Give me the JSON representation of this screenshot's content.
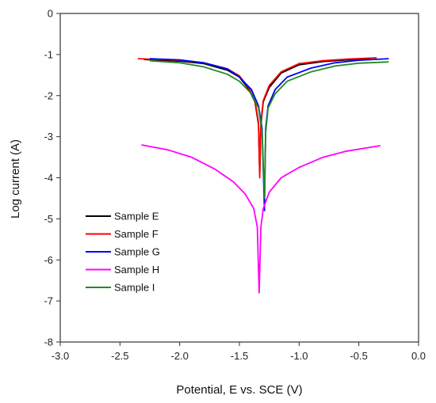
{
  "chart_data": {
    "type": "line",
    "title": "",
    "xlabel": "Potential, E vs. SCE (V)",
    "ylabel": "Log current (A)",
    "xlim": [
      -3.0,
      0.0
    ],
    "ylim": [
      -8,
      0
    ],
    "x_ticks": [
      -3.0,
      -2.5,
      -2.0,
      -1.5,
      -1.0,
      -0.5,
      0.0
    ],
    "x_tick_labels": [
      "-3.0",
      "-2.5",
      "-2.0",
      "-1.5",
      "-1.0",
      "-0.5",
      "0.0"
    ],
    "y_ticks": [
      0,
      -1,
      -2,
      -3,
      -4,
      -5,
      -6,
      -7,
      -8
    ],
    "y_tick_labels": [
      "0",
      "-1",
      "-2",
      "-3",
      "-4",
      "-5",
      "-6",
      "-7",
      "-8"
    ],
    "grid": false,
    "legend_position": "lower-left",
    "series": [
      {
        "name": "Sample E",
        "color": "#000000",
        "x": [
          -2.3,
          -2.0,
          -1.8,
          -1.6,
          -1.5,
          -1.42,
          -1.37,
          -1.34,
          -1.33,
          -1.32,
          -1.3,
          -1.25,
          -1.15,
          -1.0,
          -0.8,
          -0.6,
          -0.4
        ],
        "y": [
          -1.12,
          -1.16,
          -1.22,
          -1.38,
          -1.55,
          -1.85,
          -2.15,
          -2.7,
          -3.9,
          -2.7,
          -2.15,
          -1.8,
          -1.45,
          -1.25,
          -1.17,
          -1.13,
          -1.1
        ]
      },
      {
        "name": "Sample F",
        "color": "#ff0000",
        "x": [
          -2.35,
          -2.0,
          -1.8,
          -1.6,
          -1.5,
          -1.42,
          -1.37,
          -1.34,
          -1.33,
          -1.32,
          -1.3,
          -1.25,
          -1.15,
          -1.0,
          -0.8,
          -0.6,
          -0.35
        ],
        "y": [
          -1.1,
          -1.14,
          -1.2,
          -1.35,
          -1.52,
          -1.82,
          -2.12,
          -2.65,
          -4.0,
          -2.65,
          -2.12,
          -1.75,
          -1.42,
          -1.22,
          -1.15,
          -1.11,
          -1.08
        ]
      },
      {
        "name": "Sample G",
        "color": "#0000ff",
        "x": [
          -2.25,
          -2.0,
          -1.8,
          -1.6,
          -1.5,
          -1.4,
          -1.34,
          -1.31,
          -1.29,
          -1.28,
          -1.26,
          -1.2,
          -1.1,
          -0.9,
          -0.7,
          -0.5,
          -0.25
        ],
        "y": [
          -1.1,
          -1.13,
          -1.2,
          -1.35,
          -1.55,
          -1.85,
          -2.25,
          -2.8,
          -4.8,
          -2.8,
          -2.25,
          -1.85,
          -1.55,
          -1.33,
          -1.2,
          -1.14,
          -1.1
        ]
      },
      {
        "name": "Sample H",
        "color": "#ff00ff",
        "x": [
          -2.32,
          -2.1,
          -1.9,
          -1.7,
          -1.55,
          -1.45,
          -1.38,
          -1.35,
          -1.335,
          -1.32,
          -1.3,
          -1.25,
          -1.15,
          -1.0,
          -0.8,
          -0.6,
          -0.32
        ],
        "y": [
          -3.2,
          -3.32,
          -3.5,
          -3.8,
          -4.1,
          -4.4,
          -4.75,
          -5.2,
          -6.8,
          -5.2,
          -4.75,
          -4.35,
          -4.0,
          -3.75,
          -3.5,
          -3.35,
          -3.22
        ]
      },
      {
        "name": "Sample I",
        "color": "#228b22",
        "x": [
          -2.25,
          -2.0,
          -1.8,
          -1.6,
          -1.5,
          -1.4,
          -1.34,
          -1.31,
          -1.29,
          -1.28,
          -1.26,
          -1.2,
          -1.1,
          -0.9,
          -0.7,
          -0.5,
          -0.25
        ],
        "y": [
          -1.15,
          -1.2,
          -1.3,
          -1.48,
          -1.65,
          -1.95,
          -2.3,
          -2.9,
          -4.5,
          -2.9,
          -2.3,
          -1.95,
          -1.65,
          -1.42,
          -1.28,
          -1.21,
          -1.18
        ]
      }
    ]
  }
}
